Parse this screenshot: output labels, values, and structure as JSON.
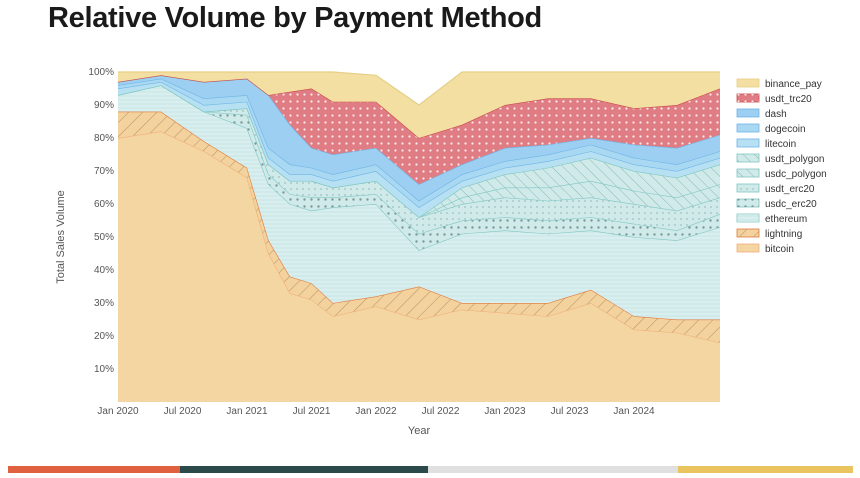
{
  "title": "Relative Volume by Payment Method",
  "colors": {
    "binance_pay": "#f3dfa2",
    "usdt_trc20": "#e07d84",
    "dash": "#9ccff2",
    "dogecoin": "#a9d8f2",
    "litecoin": "#b7e0f2",
    "usdt_polygon": "#cfeae9",
    "usdc_polygon": "#cfeae9",
    "usdt_erc20": "#cfeae9",
    "usdc_erc20": "#cfeae9",
    "ethereum": "#cfeae9",
    "lightning": "#f3d29d",
    "bitcoin": "#f4d6a2"
  },
  "footer_bars": [
    {
      "color": "#e0613f"
    },
    {
      "color": "#2b4a4a"
    },
    {
      "color": "#e0e0e0"
    },
    {
      "color": "#eac45e"
    }
  ],
  "chart_data": {
    "type": "area",
    "title": "Relative Volume by Payment Method",
    "xlabel": "Year",
    "ylabel": "Total Sales Volume",
    "x_ticks": [
      "Jan 2020",
      "Jul 2020",
      "Jan 2021",
      "Jul 2021",
      "Jan 2022",
      "Jul 2022",
      "Jan 2023",
      "Jul 2023",
      "Jan 2024"
    ],
    "y_ticks": [
      "10%",
      "20%",
      "30%",
      "40%",
      "50%",
      "60%",
      "70%",
      "80%",
      "90%",
      "100%"
    ],
    "ylim": [
      0,
      100
    ],
    "x_unit": "months since Jan 2020",
    "legend_position": "right",
    "x": [
      0,
      4,
      8,
      12,
      14,
      16,
      18,
      20,
      24,
      28,
      32,
      36,
      40,
      44,
      48,
      52,
      56
    ],
    "series": [
      {
        "name": "bitcoin",
        "values": [
          80,
          82,
          76,
          68,
          45,
          33,
          31,
          26,
          29,
          25,
          28,
          27,
          26,
          30,
          22,
          21,
          18
        ]
      },
      {
        "name": "lightning",
        "values": [
          8,
          6,
          3,
          3,
          4,
          5,
          5,
          4,
          3,
          10,
          2,
          3,
          4,
          4,
          4,
          4,
          7
        ]
      },
      {
        "name": "ethereum",
        "values": [
          5,
          8,
          9,
          12,
          17,
          22,
          22,
          29,
          28,
          11,
          21,
          22,
          21,
          18,
          24,
          24,
          28
        ]
      },
      {
        "name": "usdc_erc20",
        "values": [
          0,
          0,
          0,
          4,
          3,
          3,
          4,
          3,
          3,
          5,
          4,
          4,
          4,
          4,
          4,
          3,
          4
        ]
      },
      {
        "name": "usdt_erc20",
        "values": [
          0,
          0,
          0,
          2,
          3,
          4,
          5,
          3,
          4,
          5,
          5,
          6,
          6,
          6,
          6,
          6,
          5
        ]
      },
      {
        "name": "usdc_polygon",
        "values": [
          0,
          0,
          0,
          0,
          0,
          0,
          0,
          0,
          0,
          0,
          2,
          3,
          4,
          5,
          4,
          4,
          4
        ]
      },
      {
        "name": "usdt_polygon",
        "values": [
          0,
          0,
          0,
          0,
          0,
          0,
          0,
          0,
          0,
          0,
          3,
          4,
          6,
          7,
          6,
          6,
          6
        ]
      },
      {
        "name": "litecoin",
        "values": [
          2,
          1,
          2,
          2,
          2,
          2,
          2,
          2,
          3,
          3,
          2,
          2,
          2,
          2,
          2,
          2,
          2
        ]
      },
      {
        "name": "dogecoin",
        "values": [
          1,
          1,
          2,
          2,
          3,
          3,
          2,
          2,
          2,
          2,
          2,
          2,
          2,
          2,
          2,
          2,
          2
        ]
      },
      {
        "name": "dash",
        "values": [
          1,
          1,
          5,
          5,
          16,
          12,
          6,
          6,
          5,
          5,
          3,
          4,
          3,
          2,
          4,
          5,
          5
        ]
      },
      {
        "name": "usdt_trc20",
        "values": [
          0,
          0,
          0,
          0,
          0,
          10,
          18,
          16,
          14,
          14,
          12,
          13,
          14,
          12,
          11,
          13,
          14
        ]
      },
      {
        "name": "binance_pay",
        "values": [
          3,
          1,
          3,
          2,
          7,
          6,
          5,
          9,
          8,
          10,
          16,
          10,
          8,
          8,
          11,
          10,
          7
        ]
      }
    ],
    "legend": [
      "binance_pay",
      "usdt_trc20",
      "dash",
      "dogecoin",
      "litecoin",
      "usdt_polygon",
      "usdc_polygon",
      "usdt_erc20",
      "usdc_erc20",
      "ethereum",
      "lightning",
      "bitcoin"
    ]
  }
}
